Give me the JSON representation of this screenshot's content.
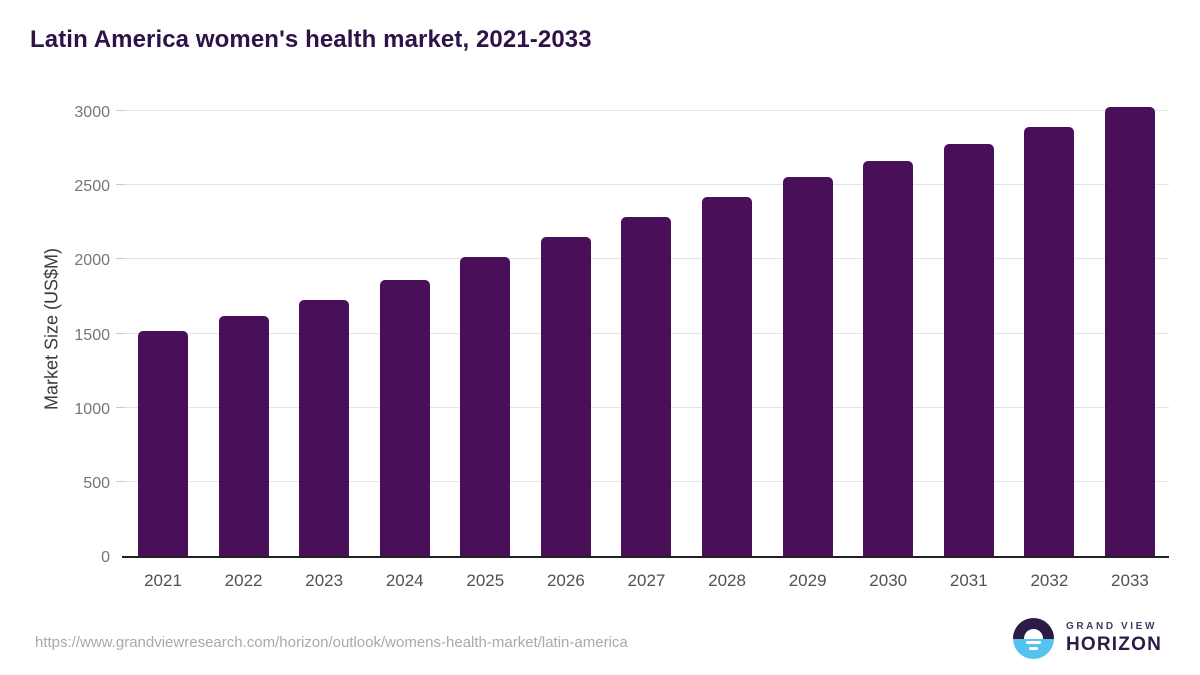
{
  "page": {
    "title": "Latin America women's health market, 2021-2033"
  },
  "chart_data": {
    "type": "bar",
    "title": "Latin America women's health market, 2021-2033",
    "categories": [
      "2021",
      "2022",
      "2023",
      "2024",
      "2025",
      "2026",
      "2027",
      "2028",
      "2029",
      "2030",
      "2031",
      "2032",
      "2033"
    ],
    "values": [
      1520,
      1615,
      1725,
      1860,
      2015,
      2150,
      2285,
      2420,
      2555,
      2665,
      2780,
      2890,
      3025
    ],
    "xlabel": "",
    "ylabel": "Market Size (US$M)",
    "ylim": [
      0,
      3000
    ],
    "yticks": [
      0,
      500,
      1000,
      1500,
      2000,
      2500,
      3000
    ],
    "grid": "horizontal",
    "legend": "none",
    "bar_color": "#490f58"
  },
  "footer": {
    "source_url": "https://www.grandviewresearch.com/horizon/outlook/womens-health-market/latin-america",
    "logo_line1": "GRAND VIEW",
    "logo_line2": "HORIZON"
  },
  "colors": {
    "bar": "#490f58",
    "title_text": "#2d1348",
    "axis_line": "#202020",
    "gridline": "#e4e4e4",
    "y_tick_label": "#767676",
    "x_tick_label": "#515151",
    "url_text": "#a9a9a9",
    "logo_dark": "#2e1a47",
    "logo_blue": "#55c3f0"
  }
}
